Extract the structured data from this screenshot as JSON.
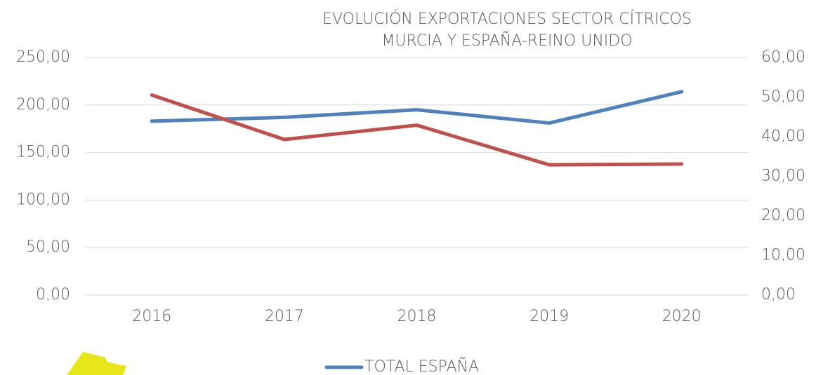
{
  "chart_data": {
    "type": "line",
    "title": [
      "EVOLUCIÓN EXPORTACIONES SECTOR CÍTRICOS",
      "MURCIA Y ESPAÑA-REINO UNIDO"
    ],
    "categories": [
      "2016",
      "2017",
      "2018",
      "2019",
      "2020"
    ],
    "series": [
      {
        "name": "TOTAL ESPAÑA",
        "color": "#4f81bd",
        "values": [
          183,
          187,
          195,
          181,
          214
        ]
      },
      {
        "color": "#c0504d",
        "axis": "y2",
        "values": [
          50.5,
          39.3,
          42.9,
          32.9,
          33.1
        ]
      }
    ],
    "ylim": [
      0,
      250
    ],
    "yticks": [
      {
        "value": 0,
        "label": "0,00"
      },
      {
        "value": 50,
        "label": "50,00"
      },
      {
        "value": 100,
        "label": "100,00"
      },
      {
        "value": 150,
        "label": "150,00"
      },
      {
        "value": 200,
        "label": "200,00"
      },
      {
        "value": 250,
        "label": "250,00"
      }
    ],
    "y2lim": [
      0,
      60
    ],
    "y2ticks": [
      {
        "value": 0,
        "label": "0,00"
      },
      {
        "value": 10,
        "label": "10,00"
      },
      {
        "value": 20,
        "label": "20,00"
      },
      {
        "value": 30,
        "label": "30,00"
      },
      {
        "value": 40,
        "label": "40,00"
      },
      {
        "value": 50,
        "label": "50,00"
      },
      {
        "value": 60,
        "label": "60,00"
      }
    ],
    "grid": true,
    "legend": "bottom"
  }
}
